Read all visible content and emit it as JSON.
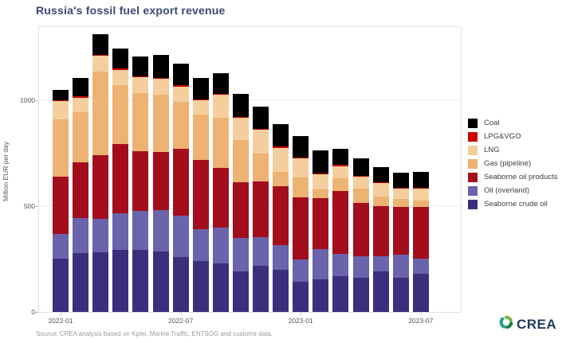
{
  "title": "Russia's fossil fuel export revenue",
  "source": "Source: CREA analysis based on Kpler, Marine Traffic, ENTSOG and customs data.",
  "logo": {
    "text": "CREA",
    "icon": "green-swirl-leaf-icon",
    "text_color": "#233a5e",
    "icon_colors": [
      "#7cb342",
      "#1b7e46",
      "#2aa18a"
    ]
  },
  "colors": {
    "title": "#3a4973",
    "axis_text": "#555555",
    "gridline": "#ededed",
    "source_text": "#9b9b9b"
  },
  "chart_data": {
    "type": "bar",
    "stacked": true,
    "title": "Russia's fossil fuel export revenue",
    "xlabel": "",
    "ylabel": "Million EUR per day",
    "ylim": [
      0,
      1345
    ],
    "yticks": [
      0,
      500,
      1000
    ],
    "grid": "horizontal-faint",
    "legend_position": "right",
    "legend_order_top_to_bottom": [
      "Coal",
      "LPG&VGO",
      "LNG",
      "Gas (pipeline)",
      "Seaborne oil products",
      "Oil (overland)",
      "Seaborne crude oil"
    ],
    "categories": [
      "2022-01",
      "2022-02",
      "2022-03",
      "2022-04",
      "2022-05",
      "2022-06",
      "2022-07",
      "2022-08",
      "2022-09",
      "2022-10",
      "2022-11",
      "2022-12",
      "2023-01",
      "2023-02",
      "2023-03",
      "2023-04",
      "2023-05",
      "2023-06",
      "2023-07"
    ],
    "xticks": [
      {
        "index": 0,
        "label": "2022-01"
      },
      {
        "index": 6,
        "label": "2022-07"
      },
      {
        "index": 12,
        "label": "2023-01"
      },
      {
        "index": 18,
        "label": "2023-07"
      }
    ],
    "stack_order": "bottom_to_top",
    "series": [
      {
        "name": "Seaborne crude oil",
        "color": "#3a2f7d",
        "values": [
          250,
          279,
          281,
          294,
          292,
          286,
          259,
          241,
          229,
          192,
          218,
          199,
          143,
          154,
          169,
          163,
          193,
          163,
          182
        ]
      },
      {
        "name": "Oil (overland)",
        "color": "#6b63ab",
        "values": [
          119,
          163,
          157,
          173,
          185,
          194,
          196,
          150,
          169,
          158,
          135,
          117,
          105,
          143,
          107,
          100,
          70,
          106,
          69
        ]
      },
      {
        "name": "Seaborne oil products",
        "color": "#a40e1c",
        "values": [
          269,
          263,
          301,
          326,
          281,
          274,
          316,
          327,
          282,
          263,
          263,
          278,
          293,
          241,
          294,
          251,
          238,
          226,
          244
        ]
      },
      {
        "name": "Gas (pipeline)",
        "color": "#eeb272",
        "values": [
          270,
          238,
          395,
          276,
          276,
          271,
          222,
          214,
          237,
          199,
          132,
          68,
          94,
          41,
          63,
          69,
          44,
          38,
          31
        ]
      },
      {
        "name": "LNG",
        "color": "#f4cf9d",
        "values": [
          88,
          69,
          75,
          75,
          75,
          75,
          71,
          68,
          109,
          105,
          113,
          113,
          90,
          71,
          56,
          56,
          63,
          50,
          56
        ]
      },
      {
        "name": "LPG&VGO",
        "color": "#cc0000",
        "values": [
          5,
          5,
          5,
          5,
          5,
          5,
          5,
          5,
          5,
          5,
          5,
          5,
          5,
          5,
          5,
          5,
          5,
          5,
          5
        ]
      },
      {
        "name": "Coal",
        "color": "#000000",
        "values": [
          48,
          89,
          97,
          93,
          93,
          108,
          104,
          100,
          97,
          108,
          104,
          108,
          100,
          108,
          76,
          83,
          70,
          70,
          73
        ]
      }
    ],
    "totals": [
      1049,
      1106,
      1311,
      1242,
      1207,
      1213,
      1173,
      1105,
      1128,
      1030,
      970,
      888,
      830,
      763,
      770,
      727,
      683,
      658,
      660
    ]
  }
}
